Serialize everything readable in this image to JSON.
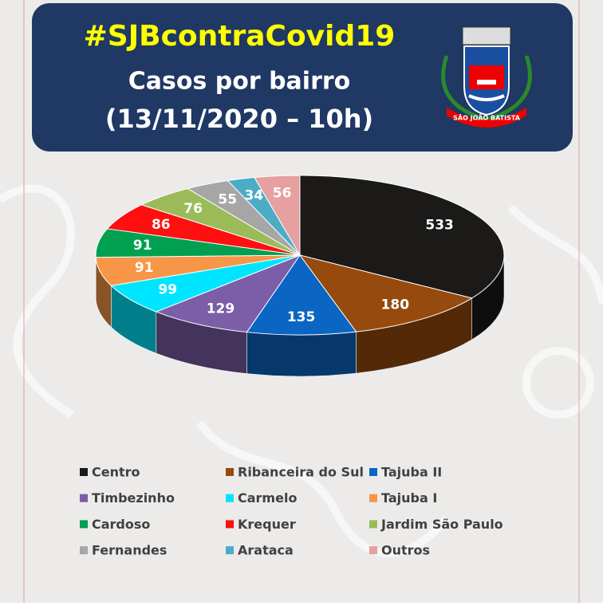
{
  "header": {
    "hashtag": "#SJBcontraCovid19",
    "title": "Casos por bairro",
    "subtitle": "(13/11/2020 – 10h)",
    "logo_caption": "SÃO JOÃO BATISTA"
  },
  "chart_data": {
    "type": "pie",
    "categories": [
      "Centro",
      "Ribanceira do Sul",
      "Tajuba II",
      "Timbezinho",
      "Carmelo",
      "Tajuba I",
      "Cardoso",
      "Krequer",
      "Jardim São Paulo",
      "Fernandes",
      "Arataca",
      "Outros"
    ],
    "values": [
      533,
      180,
      135,
      129,
      99,
      91,
      91,
      86,
      76,
      55,
      34,
      56
    ],
    "colors": [
      "#1b1a19",
      "#974a0d",
      "#0a66c2",
      "#7b5ea7",
      "#00e5ff",
      "#f79646",
      "#00a050",
      "#ff0f0f",
      "#9bbb59",
      "#a6a6a6",
      "#4bacc6",
      "#e6a0a0"
    ]
  }
}
